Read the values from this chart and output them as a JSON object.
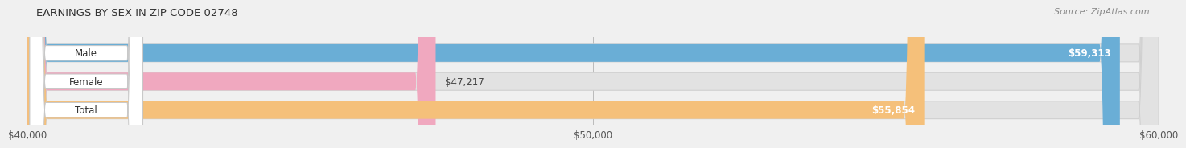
{
  "title": "EARNINGS BY SEX IN ZIP CODE 02748",
  "source": "Source: ZipAtlas.com",
  "categories": [
    "Male",
    "Female",
    "Total"
  ],
  "values": [
    59313,
    47217,
    55854
  ],
  "bar_colors": [
    "#6aaed6",
    "#f0a8bf",
    "#f5c07a"
  ],
  "bar_labels": [
    "$59,313",
    "$47,217",
    "$55,854"
  ],
  "label_inside": [
    true,
    false,
    true
  ],
  "xmin": 40000,
  "xmax": 60000,
  "xticks": [
    40000,
    50000,
    60000
  ],
  "xtick_labels": [
    "$40,000",
    "$50,000",
    "$60,000"
  ],
  "background_color": "#f0f0f0",
  "bar_bg_color": "#e2e2e2",
  "title_fontsize": 9.5,
  "source_fontsize": 8,
  "label_fontsize": 8.5,
  "tick_fontsize": 8.5,
  "cat_fontsize": 8.5
}
